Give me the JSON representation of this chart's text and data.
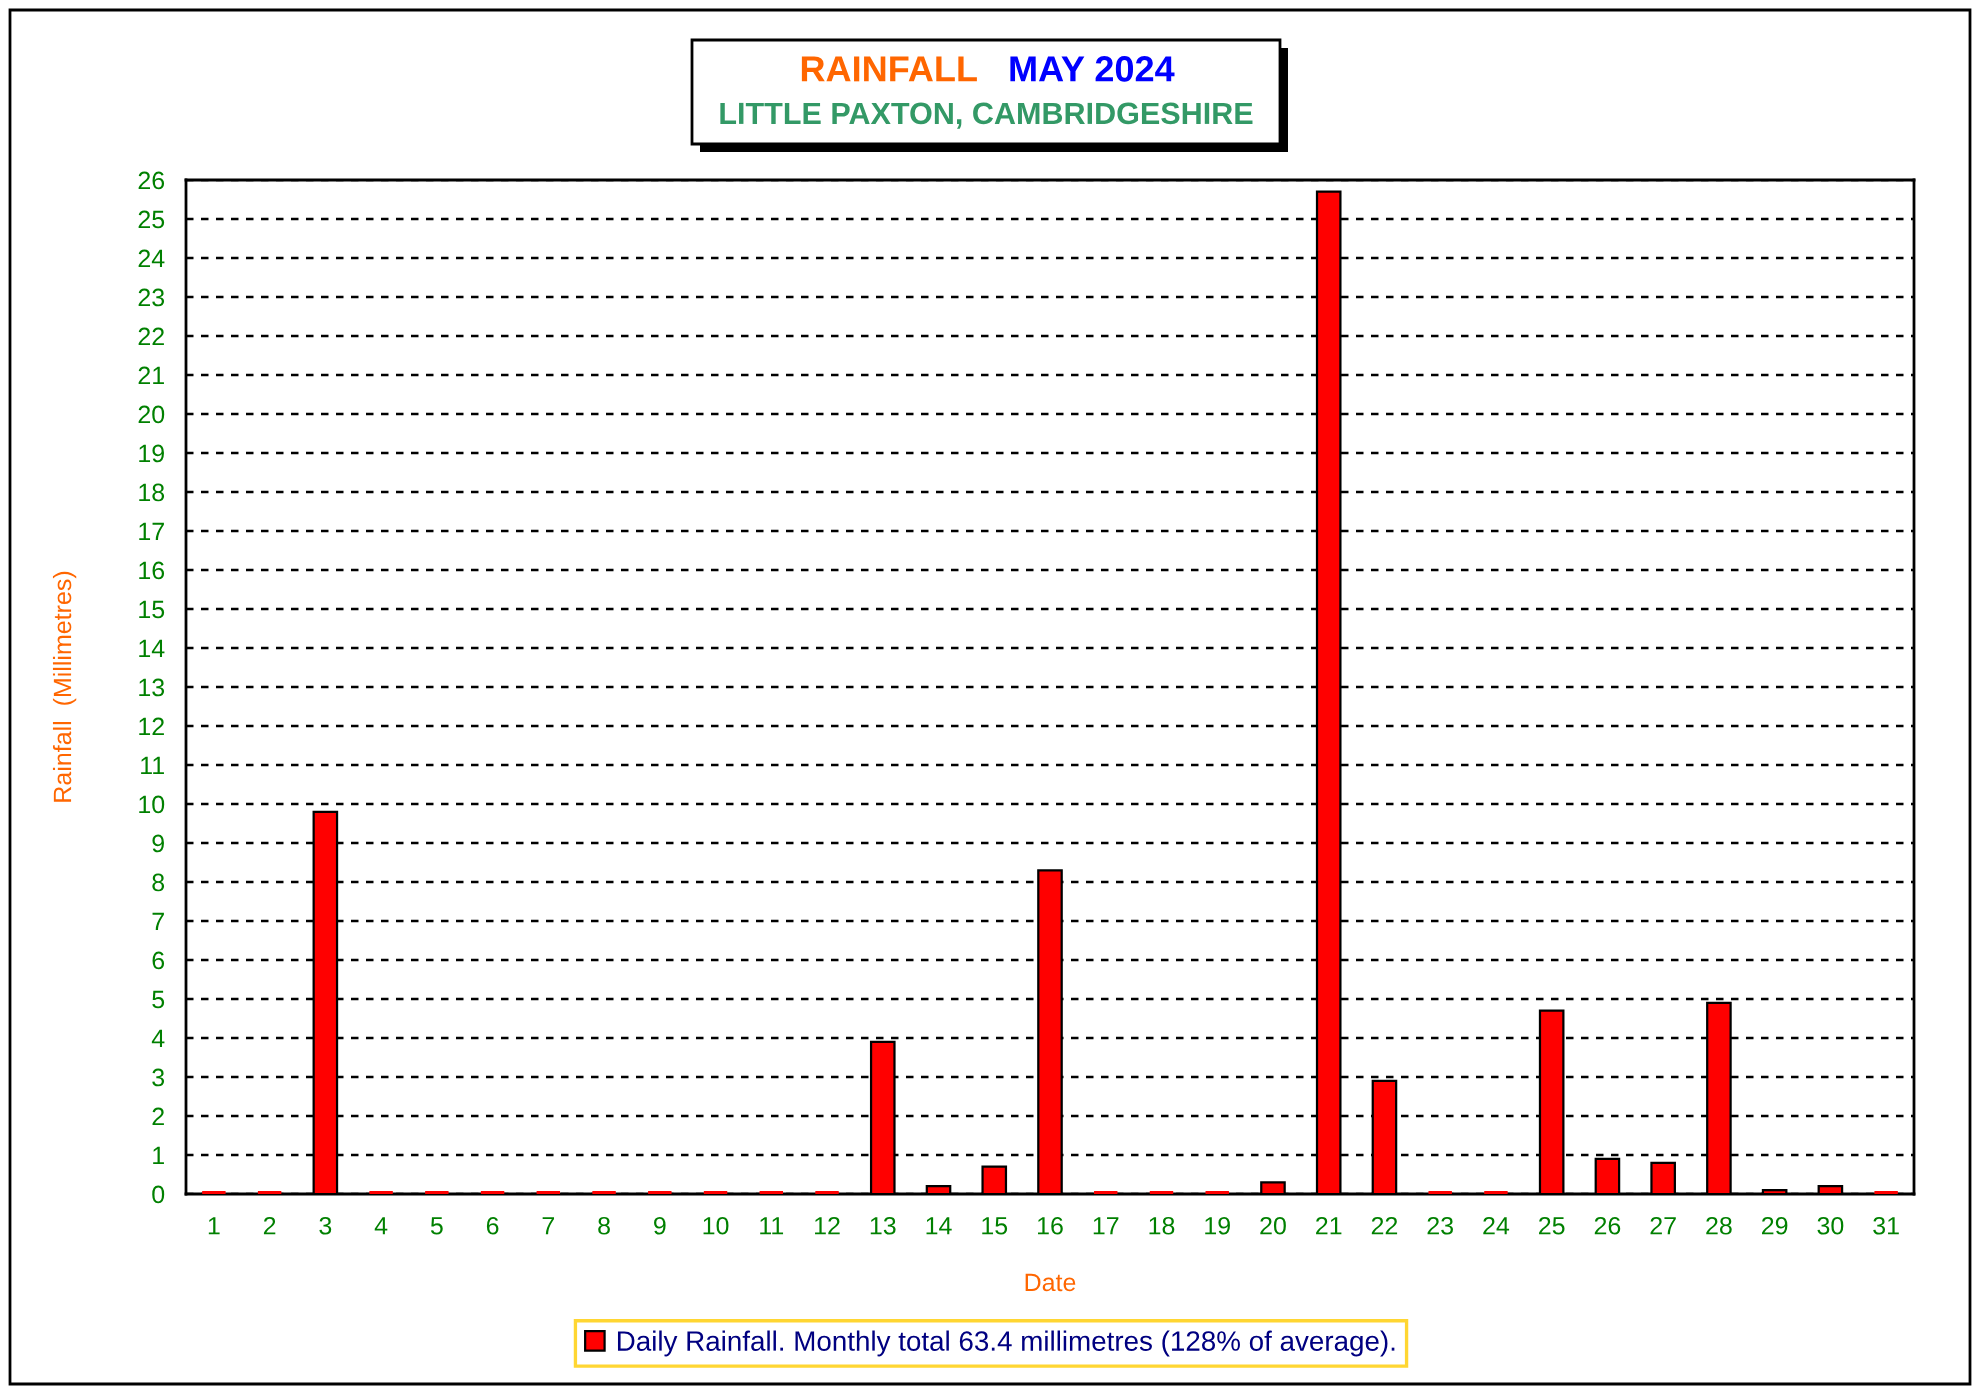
{
  "chart_data": {
    "type": "bar",
    "title": "RAINFALL   MAY 2024",
    "subtitle": "LITTLE PAXTON, CAMBRIDGESHIRE",
    "xlabel": "Date",
    "ylabel": "Rainfall  (Millimetres)",
    "categories": [
      "1",
      "2",
      "3",
      "4",
      "5",
      "6",
      "7",
      "8",
      "9",
      "10",
      "11",
      "12",
      "13",
      "14",
      "15",
      "16",
      "17",
      "18",
      "19",
      "20",
      "21",
      "22",
      "23",
      "24",
      "25",
      "26",
      "27",
      "28",
      "29",
      "30",
      "31"
    ],
    "series": [
      {
        "name": "Daily Rainfall. Monthly total 63.4 millimetres (128% of average).",
        "color": "#ff0000",
        "values": [
          0,
          0,
          9.8,
          0,
          0,
          0,
          0,
          0,
          0,
          0,
          0,
          0,
          3.9,
          0.2,
          0.7,
          8.3,
          0,
          0,
          0,
          0.3,
          25.7,
          2.9,
          0,
          0,
          4.7,
          0.9,
          0.8,
          4.9,
          0.1,
          0.2,
          0
        ]
      }
    ],
    "ylim": [
      0,
      26
    ],
    "yticks": [
      0,
      1,
      2,
      3,
      4,
      5,
      6,
      7,
      8,
      9,
      10,
      11,
      12,
      13,
      14,
      15,
      16,
      17,
      18,
      19,
      20,
      21,
      22,
      23,
      24,
      25,
      26
    ],
    "grid": "y",
    "legend": "bottom"
  }
}
